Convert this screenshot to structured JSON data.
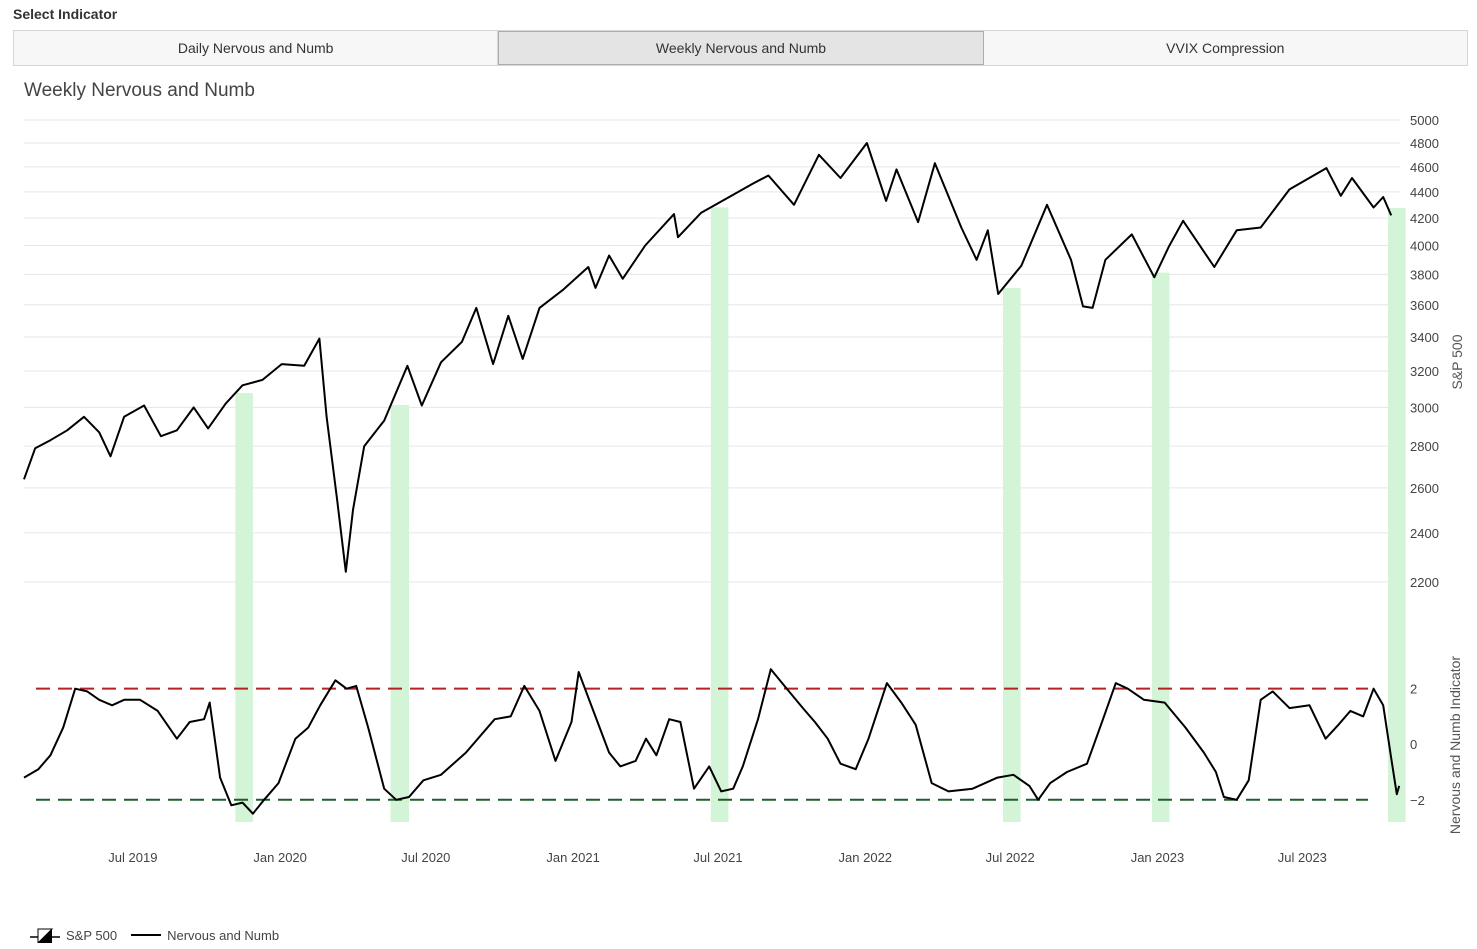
{
  "selector": {
    "label": "Select Indicator",
    "tabs": [
      {
        "label": "Daily Nervous and Numb",
        "active": false
      },
      {
        "label": "Weekly Nervous and Numb",
        "active": true
      },
      {
        "label": "VVIX Compression",
        "active": false
      }
    ]
  },
  "chart_data": {
    "type": "line",
    "title": "Weekly Nervous and Numb",
    "x_ticks": [
      "Jul 2019",
      "Jan 2020",
      "Jul 2020",
      "Jan 2021",
      "Jul 2021",
      "Jan 2022",
      "Jul 2022",
      "Jan 2023",
      "Jul 2023"
    ],
    "x_range": [
      "2019-02-15",
      "2023-10-31"
    ],
    "top_panel": {
      "ylabel": "S&P 500",
      "y_ticks": [
        2200,
        2400,
        2600,
        2800,
        3000,
        3200,
        3400,
        3600,
        3800,
        4000,
        4200,
        4400,
        4600,
        4800,
        5000
      ],
      "ylim": [
        2100,
        5000
      ],
      "scale": "log",
      "series": {
        "name": "S&P 500",
        "points": [
          [
            "2019-02-15",
            2640
          ],
          [
            "2019-03-01",
            2790
          ],
          [
            "2019-03-20",
            2830
          ],
          [
            "2019-04-10",
            2880
          ],
          [
            "2019-05-01",
            2950
          ],
          [
            "2019-05-20",
            2870
          ],
          [
            "2019-06-03",
            2750
          ],
          [
            "2019-06-20",
            2950
          ],
          [
            "2019-07-15",
            3010
          ],
          [
            "2019-08-05",
            2850
          ],
          [
            "2019-08-25",
            2880
          ],
          [
            "2019-09-15",
            3000
          ],
          [
            "2019-10-03",
            2890
          ],
          [
            "2019-10-25",
            3020
          ],
          [
            "2019-11-15",
            3120
          ],
          [
            "2019-12-10",
            3150
          ],
          [
            "2020-01-03",
            3240
          ],
          [
            "2020-01-31",
            3230
          ],
          [
            "2020-02-19",
            3390
          ],
          [
            "2020-02-28",
            2950
          ],
          [
            "2020-03-12",
            2550
          ],
          [
            "2020-03-23",
            2240
          ],
          [
            "2020-04-01",
            2500
          ],
          [
            "2020-04-15",
            2800
          ],
          [
            "2020-05-10",
            2930
          ],
          [
            "2020-06-08",
            3230
          ],
          [
            "2020-06-26",
            3010
          ],
          [
            "2020-07-20",
            3250
          ],
          [
            "2020-08-15",
            3370
          ],
          [
            "2020-09-02",
            3580
          ],
          [
            "2020-09-23",
            3240
          ],
          [
            "2020-10-12",
            3530
          ],
          [
            "2020-10-30",
            3270
          ],
          [
            "2020-11-20",
            3580
          ],
          [
            "2020-12-20",
            3700
          ],
          [
            "2021-01-20",
            3850
          ],
          [
            "2021-01-29",
            3710
          ],
          [
            "2021-02-15",
            3930
          ],
          [
            "2021-03-04",
            3770
          ],
          [
            "2021-04-01",
            4000
          ],
          [
            "2021-05-07",
            4230
          ],
          [
            "2021-05-12",
            4060
          ],
          [
            "2021-06-10",
            4240
          ],
          [
            "2021-07-15",
            4360
          ],
          [
            "2021-08-15",
            4470
          ],
          [
            "2021-09-02",
            4530
          ],
          [
            "2021-10-04",
            4300
          ],
          [
            "2021-11-04",
            4700
          ],
          [
            "2021-12-01",
            4510
          ],
          [
            "2022-01-03",
            4800
          ],
          [
            "2022-01-27",
            4330
          ],
          [
            "2022-02-09",
            4580
          ],
          [
            "2022-03-08",
            4170
          ],
          [
            "2022-03-29",
            4630
          ],
          [
            "2022-05-01",
            4130
          ],
          [
            "2022-05-20",
            3900
          ],
          [
            "2022-06-03",
            4110
          ],
          [
            "2022-06-16",
            3670
          ],
          [
            "2022-07-15",
            3860
          ],
          [
            "2022-08-16",
            4300
          ],
          [
            "2022-09-15",
            3900
          ],
          [
            "2022-09-30",
            3590
          ],
          [
            "2022-10-12",
            3580
          ],
          [
            "2022-10-28",
            3900
          ],
          [
            "2022-11-30",
            4080
          ],
          [
            "2022-12-28",
            3780
          ],
          [
            "2023-01-15",
            3990
          ],
          [
            "2023-02-02",
            4180
          ],
          [
            "2023-03-13",
            3850
          ],
          [
            "2023-04-10",
            4110
          ],
          [
            "2023-05-10",
            4130
          ],
          [
            "2023-06-15",
            4420
          ],
          [
            "2023-07-31",
            4590
          ],
          [
            "2023-08-18",
            4370
          ],
          [
            "2023-09-01",
            4510
          ],
          [
            "2023-09-28",
            4280
          ],
          [
            "2023-10-10",
            4360
          ],
          [
            "2023-10-20",
            4220
          ]
        ]
      }
    },
    "bottom_panel": {
      "ylabel": "Nervous and Numb Indicator",
      "y_ticks": [
        2,
        0,
        -2
      ],
      "ylim": [
        -2.8,
        2.6
      ],
      "thresholds": [
        {
          "value": 2,
          "color": "#b22222"
        },
        {
          "value": -2,
          "color": "#1e5e2a"
        }
      ],
      "series": {
        "name": "Nervous and Numb",
        "points": [
          [
            "2019-02-15",
            -1.2
          ],
          [
            "2019-03-05",
            -0.9
          ],
          [
            "2019-03-20",
            -0.4
          ],
          [
            "2019-04-05",
            0.6
          ],
          [
            "2019-04-20",
            2.0
          ],
          [
            "2019-05-05",
            1.9
          ],
          [
            "2019-05-20",
            1.6
          ],
          [
            "2019-06-05",
            1.4
          ],
          [
            "2019-06-20",
            1.6
          ],
          [
            "2019-07-10",
            1.6
          ],
          [
            "2019-08-01",
            1.2
          ],
          [
            "2019-08-25",
            0.2
          ],
          [
            "2019-09-10",
            0.8
          ],
          [
            "2019-09-28",
            0.9
          ],
          [
            "2019-10-05",
            1.5
          ],
          [
            "2019-10-18",
            -1.2
          ],
          [
            "2019-11-01",
            -2.2
          ],
          [
            "2019-11-15",
            -2.1
          ],
          [
            "2019-11-28",
            -2.5
          ],
          [
            "2019-12-12",
            -2.0
          ],
          [
            "2019-12-30",
            -1.4
          ],
          [
            "2020-01-20",
            0.2
          ],
          [
            "2020-02-05",
            0.6
          ],
          [
            "2020-02-20",
            1.4
          ],
          [
            "2020-03-10",
            2.3
          ],
          [
            "2020-03-24",
            2.0
          ],
          [
            "2020-04-05",
            2.1
          ],
          [
            "2020-04-20",
            0.6
          ],
          [
            "2020-05-10",
            -1.6
          ],
          [
            "2020-05-25",
            -2.0
          ],
          [
            "2020-06-10",
            -1.9
          ],
          [
            "2020-06-28",
            -1.3
          ],
          [
            "2020-07-20",
            -1.1
          ],
          [
            "2020-08-20",
            -0.3
          ],
          [
            "2020-09-25",
            0.9
          ],
          [
            "2020-10-15",
            1.0
          ],
          [
            "2020-11-01",
            2.1
          ],
          [
            "2020-11-20",
            1.2
          ],
          [
            "2020-12-10",
            -0.6
          ],
          [
            "2020-12-30",
            0.8
          ],
          [
            "2021-01-08",
            2.6
          ],
          [
            "2021-01-25",
            1.3
          ],
          [
            "2021-02-15",
            -0.3
          ],
          [
            "2021-03-01",
            -0.8
          ],
          [
            "2021-03-20",
            -0.6
          ],
          [
            "2021-04-02",
            0.2
          ],
          [
            "2021-04-15",
            -0.4
          ],
          [
            "2021-05-01",
            0.9
          ],
          [
            "2021-05-15",
            0.8
          ],
          [
            "2021-06-01",
            -1.6
          ],
          [
            "2021-06-20",
            -0.8
          ],
          [
            "2021-07-05",
            -1.7
          ],
          [
            "2021-07-20",
            -1.6
          ],
          [
            "2021-08-01",
            -0.8
          ],
          [
            "2021-08-20",
            0.9
          ],
          [
            "2021-09-05",
            2.7
          ],
          [
            "2021-09-25",
            2.0
          ],
          [
            "2021-10-15",
            1.3
          ],
          [
            "2021-10-30",
            0.8
          ],
          [
            "2021-11-15",
            0.2
          ],
          [
            "2021-12-01",
            -0.7
          ],
          [
            "2021-12-20",
            -0.9
          ],
          [
            "2022-01-05",
            0.2
          ],
          [
            "2022-01-28",
            2.2
          ],
          [
            "2022-02-15",
            1.5
          ],
          [
            "2022-03-05",
            0.7
          ],
          [
            "2022-03-25",
            -1.4
          ],
          [
            "2022-04-15",
            -1.7
          ],
          [
            "2022-05-15",
            -1.6
          ],
          [
            "2022-06-15",
            -1.2
          ],
          [
            "2022-07-05",
            -1.1
          ],
          [
            "2022-07-25",
            -1.5
          ],
          [
            "2022-08-05",
            -2.0
          ],
          [
            "2022-08-20",
            -1.4
          ],
          [
            "2022-09-10",
            -1.0
          ],
          [
            "2022-10-05",
            -0.7
          ],
          [
            "2022-10-25",
            0.9
          ],
          [
            "2022-11-10",
            2.2
          ],
          [
            "2022-11-25",
            2.0
          ],
          [
            "2022-12-15",
            1.6
          ],
          [
            "2023-01-10",
            1.5
          ],
          [
            "2023-02-05",
            0.6
          ],
          [
            "2023-02-28",
            -0.3
          ],
          [
            "2023-03-15",
            -1.0
          ],
          [
            "2023-03-25",
            -1.9
          ],
          [
            "2023-04-10",
            -2.0
          ],
          [
            "2023-04-25",
            -1.3
          ],
          [
            "2023-05-10",
            1.6
          ],
          [
            "2023-05-25",
            1.9
          ],
          [
            "2023-06-15",
            1.3
          ],
          [
            "2023-07-10",
            1.4
          ],
          [
            "2023-07-30",
            0.2
          ],
          [
            "2023-08-15",
            0.7
          ],
          [
            "2023-08-30",
            1.2
          ],
          [
            "2023-09-15",
            1.0
          ],
          [
            "2023-09-28",
            2.0
          ],
          [
            "2023-10-10",
            1.4
          ],
          [
            "2023-10-20",
            -0.5
          ],
          [
            "2023-10-27",
            -1.8
          ],
          [
            "2023-10-30",
            -1.5
          ]
        ]
      }
    },
    "signal_windows": [
      [
        "2019-11-06",
        "2019-11-28"
      ],
      [
        "2020-05-18",
        "2020-06-10"
      ],
      [
        "2021-06-22",
        "2021-07-14"
      ],
      [
        "2022-06-22",
        "2022-07-14"
      ],
      [
        "2022-12-25",
        "2023-01-16"
      ],
      [
        "2023-10-16",
        "2023-11-07"
      ]
    ],
    "signal_color": "#d4f4d8",
    "legend": {
      "items": [
        "S&P 500",
        "Nervous and Numb"
      ],
      "placement": "bottom-left"
    }
  }
}
